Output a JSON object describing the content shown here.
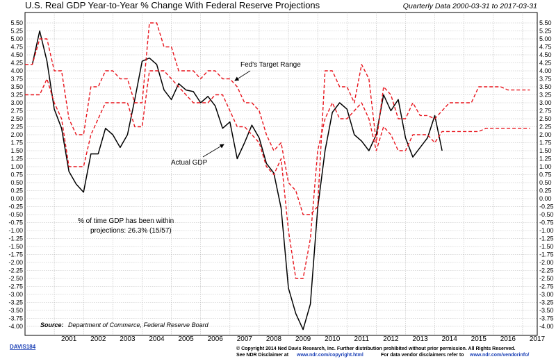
{
  "chart_data": {
    "type": "line",
    "title": "U.S. Real GDP Year-to-Year % Change With Federal Reserve Projections",
    "subtitle": "Quarterly Data 2000-03-31 to 2017-03-31",
    "ylim": [
      -4.0,
      5.5
    ],
    "y_ticks": [
      "5.50",
      "5.25",
      "5.00",
      "4.75",
      "4.50",
      "4.25",
      "4.00",
      "3.75",
      "3.50",
      "3.25",
      "3.00",
      "2.75",
      "2.50",
      "2.25",
      "2.00",
      "1.75",
      "1.50",
      "1.25",
      "1.00",
      "0.75",
      "0.50",
      "0.25",
      "0.00",
      "-0.25",
      "-0.50",
      "-0.75",
      "-1.00",
      "-1.25",
      "-1.50",
      "-1.75",
      "-2.00",
      "-2.25",
      "-2.50",
      "-2.75",
      "-3.00",
      "-3.25",
      "-3.50",
      "-3.75",
      "-4.00"
    ],
    "x_ticks": [
      "2001",
      "2002",
      "2003",
      "2004",
      "2005",
      "2006",
      "2007",
      "2008",
      "2009",
      "2010",
      "2011",
      "2012",
      "2013",
      "2014",
      "2015",
      "2016",
      "2017"
    ],
    "grid": true,
    "colors": {
      "actual": "#000000",
      "range": "#e8141c",
      "grid": "#b8b8b8"
    },
    "series": [
      {
        "name": "Actual GDP",
        "x": [
          2000.25,
          2000.5,
          2000.75,
          2001.0,
          2001.25,
          2001.5,
          2001.75,
          2002.0,
          2002.25,
          2002.5,
          2002.75,
          2003.0,
          2003.25,
          2003.5,
          2003.75,
          2004.0,
          2004.25,
          2004.5,
          2004.75,
          2005.0,
          2005.25,
          2005.5,
          2005.75,
          2006.0,
          2006.25,
          2006.5,
          2006.75,
          2007.0,
          2007.25,
          2007.5,
          2007.75,
          2008.0,
          2008.25,
          2008.5,
          2008.75,
          2009.0,
          2009.25,
          2009.5,
          2009.75,
          2010.0,
          2010.25,
          2010.5,
          2010.75,
          2011.0,
          2011.25,
          2011.5,
          2011.75,
          2012.0,
          2012.25,
          2012.5,
          2012.75,
          2013.0,
          2013.25,
          2013.5,
          2013.75,
          2014.0,
          2014.25
        ],
        "values": [
          4.2,
          5.25,
          4.3,
          2.8,
          2.2,
          0.85,
          0.45,
          0.2,
          1.4,
          1.4,
          2.2,
          2.0,
          1.6,
          2.0,
          3.1,
          4.3,
          4.4,
          4.2,
          3.4,
          3.1,
          3.6,
          3.4,
          3.35,
          3.0,
          3.2,
          2.9,
          2.2,
          2.4,
          1.25,
          1.75,
          2.3,
          1.9,
          1.1,
          0.8,
          -0.3,
          -2.8,
          -3.6,
          -4.1,
          -3.3,
          -0.3,
          1.5,
          2.7,
          3.0,
          2.8,
          2.0,
          1.8,
          1.5,
          2.0,
          3.25,
          2.75,
          3.1,
          1.9,
          1.3,
          1.6,
          1.9,
          2.6,
          1.5
        ]
      },
      {
        "name": "Fed's Target Range",
        "role": "upper",
        "x": [
          2000.0,
          2000.25,
          2000.5,
          2000.75,
          2001.0,
          2001.25,
          2001.5,
          2001.75,
          2002.0,
          2002.25,
          2002.5,
          2002.75,
          2003.0,
          2003.25,
          2003.5,
          2003.75,
          2004.0,
          2004.25,
          2004.5,
          2004.75,
          2005.0,
          2005.25,
          2005.5,
          2005.75,
          2006.0,
          2006.25,
          2006.5,
          2006.75,
          2007.0,
          2007.25,
          2007.5,
          2007.75,
          2008.0,
          2008.25,
          2008.5,
          2008.75,
          2009.0,
          2009.25,
          2009.5,
          2009.75,
          2010.0,
          2010.25,
          2010.5,
          2010.75,
          2011.0,
          2011.25,
          2011.5,
          2011.75,
          2012.0,
          2012.25,
          2012.5,
          2012.75,
          2013.0,
          2013.25,
          2013.5,
          2013.75,
          2014.0,
          2014.25,
          2014.5,
          2014.75,
          2015.0,
          2015.25,
          2015.5,
          2015.75,
          2016.0,
          2016.25,
          2016.5,
          2016.75,
          2017.0,
          2017.25
        ],
        "values": [
          4.2,
          4.2,
          5.0,
          5.0,
          4.0,
          4.0,
          2.5,
          2.0,
          2.0,
          3.5,
          3.5,
          4.0,
          4.0,
          3.75,
          3.75,
          3.0,
          3.0,
          5.5,
          5.5,
          4.75,
          4.75,
          4.0,
          4.0,
          4.0,
          3.75,
          4.0,
          4.0,
          3.75,
          3.75,
          3.5,
          3.0,
          3.0,
          2.75,
          2.0,
          1.5,
          1.75,
          0.5,
          0.25,
          -0.5,
          -0.5,
          -0.25,
          4.0,
          4.0,
          3.5,
          3.5,
          3.0,
          4.2,
          3.75,
          1.75,
          3.5,
          3.25,
          2.5,
          2.5,
          3.0,
          2.6,
          2.6,
          2.5,
          2.75,
          3.0,
          3.0,
          3.0,
          3.0,
          3.5,
          3.5,
          3.5,
          3.5,
          3.4,
          3.4,
          3.4,
          3.4
        ]
      },
      {
        "name": "Fed's Target Range",
        "role": "lower",
        "x": [
          2000.0,
          2000.25,
          2000.5,
          2000.75,
          2001.0,
          2001.25,
          2001.5,
          2001.75,
          2002.0,
          2002.25,
          2002.5,
          2002.75,
          2003.0,
          2003.25,
          2003.5,
          2003.75,
          2004.0,
          2004.25,
          2004.5,
          2004.75,
          2005.0,
          2005.25,
          2005.5,
          2005.75,
          2006.0,
          2006.25,
          2006.5,
          2006.75,
          2007.0,
          2007.25,
          2007.5,
          2007.75,
          2008.0,
          2008.25,
          2008.5,
          2008.75,
          2009.0,
          2009.25,
          2009.5,
          2009.75,
          2010.0,
          2010.25,
          2010.5,
          2010.75,
          2011.0,
          2011.25,
          2011.5,
          2011.75,
          2012.0,
          2012.25,
          2012.5,
          2012.75,
          2013.0,
          2013.25,
          2013.5,
          2013.75,
          2014.0,
          2014.25,
          2014.5,
          2014.75,
          2015.0,
          2015.25,
          2015.5,
          2015.75,
          2016.0,
          2016.25,
          2016.5,
          2016.75,
          2017.0,
          2017.25
        ],
        "values": [
          3.25,
          3.25,
          3.25,
          3.75,
          3.0,
          2.5,
          1.0,
          1.0,
          1.0,
          2.0,
          2.5,
          3.0,
          3.0,
          3.0,
          3.0,
          2.25,
          2.25,
          4.0,
          4.0,
          4.0,
          3.75,
          3.5,
          3.25,
          3.0,
          3.0,
          3.0,
          3.25,
          3.25,
          2.75,
          2.25,
          2.25,
          2.0,
          1.75,
          1.0,
          0.75,
          1.25,
          -1.0,
          -2.5,
          -2.5,
          -1.25,
          1.5,
          2.5,
          3.0,
          2.5,
          2.5,
          2.75,
          3.0,
          2.5,
          1.5,
          2.25,
          2.0,
          1.5,
          1.5,
          2.0,
          2.0,
          2.0,
          1.75,
          2.1,
          2.1,
          2.1,
          2.1,
          2.1,
          2.1,
          2.2,
          2.2,
          2.2,
          2.2,
          2.2,
          2.2,
          2.2
        ]
      }
    ],
    "annotations": {
      "fed_label": "Fed's Target Range",
      "gdp_label": "Actual GDP",
      "stat_line1": "% of time GDP has been within",
      "stat_line2": "projections: 26.3% (15/57)"
    }
  },
  "source": {
    "label": "Source:",
    "text": "Department of Commerce, Federal Reserve Board"
  },
  "footer": {
    "code": "DAVIS184",
    "copyright": "© Copyright 2014 Ned Davis Research, Inc. Further distribution prohibited without prior permission. All Rights Reserved.",
    "disclaimer_label": "See NDR Disclaimer at",
    "disclaimer_url": "www.ndr.com/copyright.html",
    "vendor_label": "For data vendor disclaimers refer to",
    "vendor_url": "www.ndr.com/vendorinfo/"
  }
}
